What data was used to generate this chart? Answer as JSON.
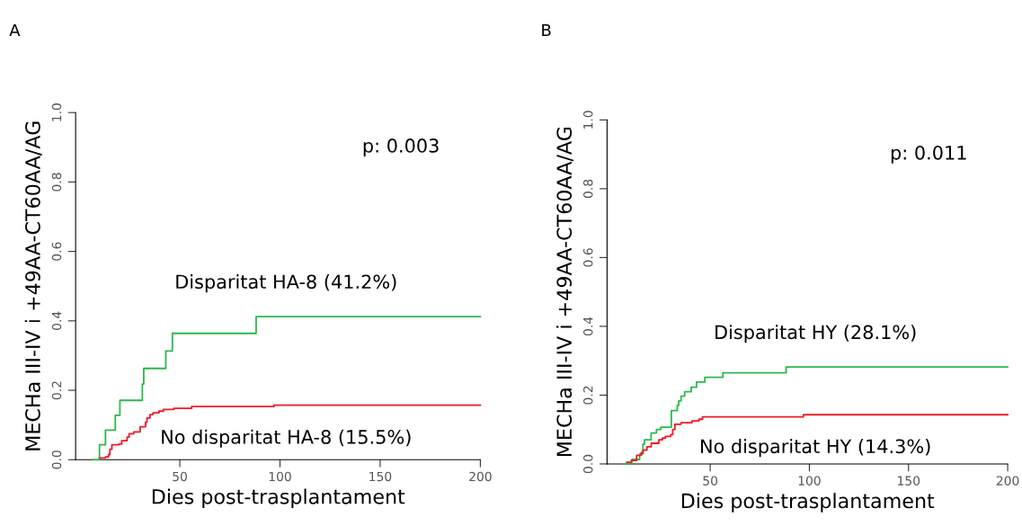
{
  "chart_data": [
    {
      "type": "step",
      "title": "A",
      "xlabel": "Dies post-trasplantament",
      "ylabel": "MECHa III-IV i +49AA-CT60AA/AG",
      "xlim": [
        -2,
        200
      ],
      "ylim": [
        0,
        1
      ],
      "xticks": [
        50,
        100,
        150,
        200
      ],
      "yticks": [
        {
          "value": 0,
          "label": "0.0"
        },
        {
          "value": 0.2,
          "label": "0.2"
        },
        {
          "value": 0.4,
          "label": "0.4"
        },
        {
          "value": 0.6,
          "label": "0.6"
        },
        {
          "value": 0.8,
          "label": "0.8"
        },
        {
          "value": 1,
          "label": "1.0"
        }
      ],
      "grid": false,
      "legend": false,
      "annotations": [
        "p: 0.003"
      ],
      "series": [
        {
          "name": "Disparitat HA-8 (41.2%)",
          "color": "#2db84d",
          "x": [
            6.1,
            9.9,
            12.9,
            17.8,
            20.1,
            31.3,
            32,
            43,
            46.3,
            88.1,
            200
          ],
          "values": [
            0,
            0.043,
            0.085,
            0.128,
            0.171,
            0.218,
            0.263,
            0.313,
            0.364,
            0.412,
            0.412
          ]
        },
        {
          "name": "No disparitat HA-8 (15.5%)",
          "color": "#ed1c24",
          "x": [
            9.9,
            12.9,
            14.4,
            15.1,
            16.1,
            19.6,
            21,
            23.7,
            24.7,
            27,
            30.2,
            32.9,
            33.6,
            35.1,
            36.6,
            39.6,
            41.8,
            47,
            55.9,
            97,
            200
          ],
          "values": [
            0.005,
            0.008,
            0.015,
            0.03,
            0.043,
            0.045,
            0.055,
            0.065,
            0.075,
            0.08,
            0.095,
            0.108,
            0.12,
            0.13,
            0.135,
            0.14,
            0.145,
            0.148,
            0.153,
            0.157,
            0.157
          ]
        }
      ]
    },
    {
      "type": "step",
      "title": "B",
      "xlabel": "Dies post-trasplantament",
      "ylabel": "MECHa III-IV i +49AA-CT60AA/AG",
      "xlim": [
        -2,
        200
      ],
      "ylim": [
        0,
        1
      ],
      "xticks": [
        50,
        100,
        150,
        200
      ],
      "yticks": [
        {
          "value": 0,
          "label": "0.0"
        },
        {
          "value": 0.2,
          "label": "0.2"
        },
        {
          "value": 0.4,
          "label": "0.4"
        },
        {
          "value": 0.6,
          "label": "0.6"
        },
        {
          "value": 0.8,
          "label": "0.8"
        },
        {
          "value": 1,
          "label": "1.0"
        }
      ],
      "grid": false,
      "legend": false,
      "annotations": [
        "p: 0.011"
      ],
      "series": [
        {
          "name": "Disparitat HY (28.1%)",
          "color": "#2db84d",
          "x": [
            6.1,
            10.5,
            14.4,
            15.4,
            16.1,
            16.9,
            20.2,
            22.9,
            25.1,
            30.4,
            33.4,
            34.1,
            35.3,
            37.1,
            40.4,
            43.1,
            47.3,
            56.4,
            88.3,
            200
          ],
          "values": [
            0,
            0.013,
            0.025,
            0.035,
            0.058,
            0.07,
            0.09,
            0.1,
            0.107,
            0.155,
            0.17,
            0.183,
            0.197,
            0.21,
            0.223,
            0.238,
            0.252,
            0.265,
            0.282,
            0.282
          ]
        },
        {
          "name": "No disparitat HY (14.3%)",
          "color": "#ed1c24",
          "x": [
            7.9,
            10.2,
            12.9,
            14.7,
            16.1,
            18.1,
            20.3,
            24.1,
            25.9,
            27.4,
            30.1,
            31.1,
            32.2,
            35.3,
            40.8,
            44.3,
            46.1,
            97,
            200
          ],
          "values": [
            0.005,
            0.01,
            0.025,
            0.03,
            0.04,
            0.05,
            0.06,
            0.07,
            0.075,
            0.08,
            0.085,
            0.1,
            0.115,
            0.12,
            0.125,
            0.13,
            0.137,
            0.143,
            0.143
          ]
        }
      ]
    }
  ]
}
